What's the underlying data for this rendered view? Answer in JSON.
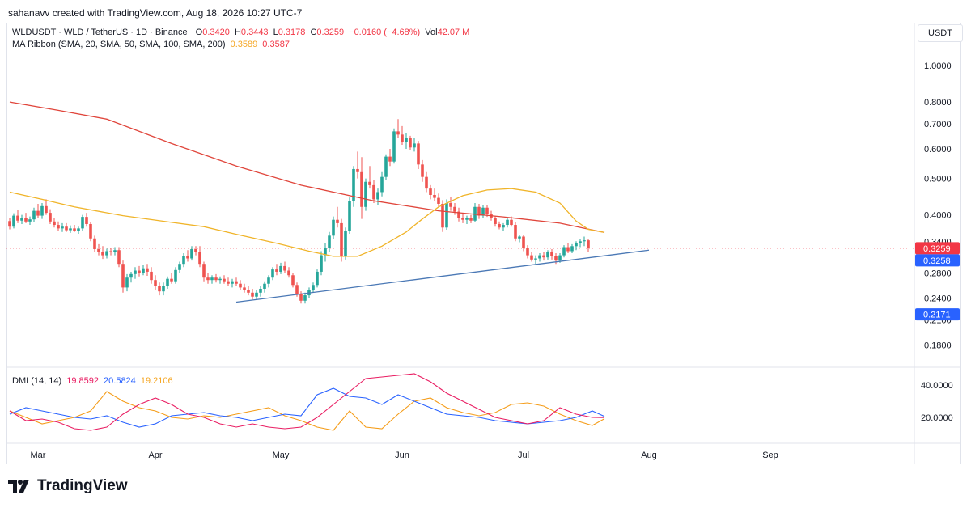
{
  "header": {
    "credit": "sahanavv created with TradingView.com, Aug 18, 2026 10:27 UTC-7"
  },
  "legend": {
    "symbol": "WLDUSDT · WLD / TetherUS · 1D · Binance",
    "o_label": "O",
    "o_value": "0.3420",
    "h_label": "H",
    "h_value": "0.3443",
    "l_label": "L",
    "l_value": "0.3178",
    "c_label": "C",
    "c_value": "0.3259",
    "change": "−0.0160 (−4.68%)",
    "vol_label": "Vol",
    "vol_value": "42.07 M",
    "ma_label": "MA Ribbon (SMA, 20, SMA, 50, SMA, 100, SMA, 200)",
    "ma_value1": "0.3589",
    "ma_value2": "0.3587",
    "dmi_label": "DMI (14, 14)",
    "dmi_plus": "19.8592",
    "dmi_minus": "20.5824",
    "dmi_adx": "19.2106"
  },
  "axis": {
    "currency": "USDT",
    "price_ticks": [
      "1.0000",
      "0.8000",
      "0.7000",
      "0.6000",
      "0.5000",
      "0.4000",
      "0.3400",
      "0.2800",
      "0.2400",
      "0.2100",
      "0.1800"
    ],
    "price_tick_values": [
      1.0,
      0.8,
      0.7,
      0.6,
      0.5,
      0.4,
      0.34,
      0.28,
      0.24,
      0.21,
      0.18
    ],
    "dmi_ticks": [
      "40.0000",
      "20.0000"
    ],
    "dmi_tick_values": [
      40,
      20
    ],
    "months": [
      "Mar",
      "Apr",
      "May",
      "Jun",
      "Jul",
      "Aug",
      "Sep"
    ],
    "price_labels": [
      {
        "text": "0.3259",
        "value": 0.3259,
        "color": "#f23645"
      },
      {
        "text": "0.3258",
        "value": 0.3258,
        "color": "#2962ff"
      },
      {
        "text": "0.2171",
        "value": 0.2171,
        "color": "#2962ff"
      }
    ]
  },
  "brand": {
    "name": "TradingView"
  },
  "colors": {
    "up": "#26a69a",
    "down": "#ef5350",
    "ma_orange": "#f0b429",
    "ma_red": "#e0453b",
    "trendline": "#4a78b5",
    "dmi_plus": "#e91e63",
    "dmi_minus": "#2962ff",
    "dmi_adx": "#f59d1a"
  },
  "chart_data": {
    "type": "candlestick",
    "scale": "log",
    "x_start": "2026-02-23",
    "ylim": [
      0.16,
      1.1
    ],
    "dmi_ylim": [
      5,
      48
    ],
    "candles": [
      [
        0.385,
        0.392,
        0.366,
        0.372
      ],
      [
        0.372,
        0.404,
        0.368,
        0.398
      ],
      [
        0.398,
        0.412,
        0.38,
        0.386
      ],
      [
        0.386,
        0.4,
        0.378,
        0.392
      ],
      [
        0.392,
        0.405,
        0.38,
        0.384
      ],
      [
        0.384,
        0.396,
        0.376,
        0.389
      ],
      [
        0.389,
        0.418,
        0.382,
        0.41
      ],
      [
        0.41,
        0.428,
        0.392,
        0.398
      ],
      [
        0.398,
        0.43,
        0.39,
        0.422
      ],
      [
        0.422,
        0.44,
        0.4,
        0.405
      ],
      [
        0.405,
        0.414,
        0.378,
        0.384
      ],
      [
        0.384,
        0.392,
        0.37,
        0.376
      ],
      [
        0.376,
        0.384,
        0.362,
        0.368
      ],
      [
        0.368,
        0.38,
        0.36,
        0.372
      ],
      [
        0.372,
        0.38,
        0.36,
        0.364
      ],
      [
        0.364,
        0.375,
        0.358,
        0.368
      ],
      [
        0.368,
        0.376,
        0.36,
        0.363
      ],
      [
        0.363,
        0.372,
        0.356,
        0.368
      ],
      [
        0.368,
        0.4,
        0.362,
        0.395
      ],
      [
        0.395,
        0.405,
        0.372,
        0.378
      ],
      [
        0.378,
        0.383,
        0.34,
        0.346
      ],
      [
        0.346,
        0.352,
        0.318,
        0.324
      ],
      [
        0.324,
        0.334,
        0.312,
        0.318
      ],
      [
        0.318,
        0.33,
        0.305,
        0.312
      ],
      [
        0.312,
        0.325,
        0.306,
        0.32
      ],
      [
        0.32,
        0.326,
        0.312,
        0.318
      ],
      [
        0.318,
        0.328,
        0.312,
        0.322
      ],
      [
        0.322,
        0.328,
        0.29,
        0.296
      ],
      [
        0.296,
        0.302,
        0.248,
        0.256
      ],
      [
        0.256,
        0.278,
        0.25,
        0.272
      ],
      [
        0.272,
        0.282,
        0.264,
        0.278
      ],
      [
        0.278,
        0.29,
        0.27,
        0.284
      ],
      [
        0.284,
        0.292,
        0.274,
        0.28
      ],
      [
        0.28,
        0.294,
        0.276,
        0.288
      ],
      [
        0.288,
        0.296,
        0.275,
        0.282
      ],
      [
        0.282,
        0.29,
        0.262,
        0.268
      ],
      [
        0.268,
        0.276,
        0.252,
        0.258
      ],
      [
        0.258,
        0.264,
        0.244,
        0.25
      ],
      [
        0.25,
        0.264,
        0.244,
        0.258
      ],
      [
        0.258,
        0.274,
        0.254,
        0.27
      ],
      [
        0.27,
        0.28,
        0.262,
        0.266
      ],
      [
        0.266,
        0.29,
        0.262,
        0.285
      ],
      [
        0.285,
        0.3,
        0.28,
        0.296
      ],
      [
        0.296,
        0.316,
        0.29,
        0.31
      ],
      [
        0.31,
        0.322,
        0.3,
        0.306
      ],
      [
        0.306,
        0.33,
        0.302,
        0.324
      ],
      [
        0.324,
        0.33,
        0.312,
        0.318
      ],
      [
        0.318,
        0.33,
        0.29,
        0.296
      ],
      [
        0.296,
        0.3,
        0.266,
        0.272
      ],
      [
        0.272,
        0.28,
        0.262,
        0.268
      ],
      [
        0.268,
        0.276,
        0.262,
        0.272
      ],
      [
        0.272,
        0.278,
        0.264,
        0.268
      ],
      [
        0.268,
        0.274,
        0.262,
        0.27
      ],
      [
        0.27,
        0.276,
        0.262,
        0.266
      ],
      [
        0.266,
        0.272,
        0.258,
        0.262
      ],
      [
        0.262,
        0.27,
        0.256,
        0.266
      ],
      [
        0.266,
        0.272,
        0.258,
        0.262
      ],
      [
        0.262,
        0.268,
        0.252,
        0.256
      ],
      [
        0.256,
        0.262,
        0.248,
        0.252
      ],
      [
        0.252,
        0.258,
        0.244,
        0.248
      ],
      [
        0.248,
        0.254,
        0.238,
        0.242
      ],
      [
        0.242,
        0.252,
        0.238,
        0.248
      ],
      [
        0.248,
        0.258,
        0.242,
        0.254
      ],
      [
        0.254,
        0.266,
        0.248,
        0.262
      ],
      [
        0.262,
        0.276,
        0.256,
        0.272
      ],
      [
        0.272,
        0.29,
        0.268,
        0.286
      ],
      [
        0.286,
        0.296,
        0.276,
        0.282
      ],
      [
        0.282,
        0.298,
        0.278,
        0.292
      ],
      [
        0.292,
        0.3,
        0.28,
        0.284
      ],
      [
        0.284,
        0.29,
        0.272,
        0.276
      ],
      [
        0.276,
        0.28,
        0.256,
        0.26
      ],
      [
        0.26,
        0.264,
        0.242,
        0.246
      ],
      [
        0.246,
        0.25,
        0.232,
        0.236
      ],
      [
        0.236,
        0.248,
        0.232,
        0.244
      ],
      [
        0.244,
        0.256,
        0.24,
        0.252
      ],
      [
        0.252,
        0.264,
        0.248,
        0.26
      ],
      [
        0.26,
        0.286,
        0.256,
        0.282
      ],
      [
        0.282,
        0.32,
        0.276,
        0.312
      ],
      [
        0.312,
        0.336,
        0.3,
        0.326
      ],
      [
        0.326,
        0.36,
        0.318,
        0.352
      ],
      [
        0.352,
        0.396,
        0.344,
        0.388
      ],
      [
        0.388,
        0.42,
        0.37,
        0.38
      ],
      [
        0.38,
        0.39,
        0.3,
        0.31
      ],
      [
        0.31,
        0.37,
        0.304,
        0.362
      ],
      [
        0.362,
        0.445,
        0.356,
        0.436
      ],
      [
        0.436,
        0.54,
        0.42,
        0.53
      ],
      [
        0.53,
        0.59,
        0.5,
        0.52
      ],
      [
        0.52,
        0.57,
        0.39,
        0.42
      ],
      [
        0.42,
        0.5,
        0.41,
        0.49
      ],
      [
        0.49,
        0.54,
        0.47,
        0.48
      ],
      [
        0.48,
        0.495,
        0.43,
        0.44
      ],
      [
        0.44,
        0.47,
        0.425,
        0.46
      ],
      [
        0.46,
        0.52,
        0.448,
        0.505
      ],
      [
        0.505,
        0.58,
        0.495,
        0.572
      ],
      [
        0.572,
        0.6,
        0.54,
        0.555
      ],
      [
        0.555,
        0.68,
        0.548,
        0.668
      ],
      [
        0.668,
        0.72,
        0.64,
        0.655
      ],
      [
        0.655,
        0.69,
        0.615,
        0.625
      ],
      [
        0.625,
        0.66,
        0.6,
        0.64
      ],
      [
        0.64,
        0.65,
        0.595,
        0.605
      ],
      [
        0.605,
        0.64,
        0.59,
        0.62
      ],
      [
        0.62,
        0.63,
        0.53,
        0.545
      ],
      [
        0.545,
        0.56,
        0.49,
        0.505
      ],
      [
        0.505,
        0.52,
        0.46,
        0.47
      ],
      [
        0.47,
        0.48,
        0.44,
        0.452
      ],
      [
        0.452,
        0.47,
        0.436,
        0.444
      ],
      [
        0.444,
        0.456,
        0.42,
        0.428
      ],
      [
        0.428,
        0.438,
        0.36,
        0.37
      ],
      [
        0.37,
        0.44,
        0.365,
        0.43
      ],
      [
        0.43,
        0.446,
        0.41,
        0.42
      ],
      [
        0.42,
        0.43,
        0.4,
        0.408
      ],
      [
        0.408,
        0.418,
        0.384,
        0.392
      ],
      [
        0.392,
        0.402,
        0.38,
        0.388
      ],
      [
        0.388,
        0.398,
        0.378,
        0.392
      ],
      [
        0.392,
        0.4,
        0.38,
        0.386
      ],
      [
        0.386,
        0.43,
        0.382,
        0.42
      ],
      [
        0.42,
        0.428,
        0.39,
        0.398
      ],
      [
        0.398,
        0.425,
        0.392,
        0.418
      ],
      [
        0.418,
        0.424,
        0.395,
        0.402
      ],
      [
        0.402,
        0.41,
        0.386,
        0.392
      ],
      [
        0.392,
        0.398,
        0.372,
        0.378
      ],
      [
        0.378,
        0.384,
        0.366,
        0.37
      ],
      [
        0.37,
        0.38,
        0.362,
        0.376
      ],
      [
        0.376,
        0.392,
        0.37,
        0.388
      ],
      [
        0.388,
        0.396,
        0.372,
        0.376
      ],
      [
        0.376,
        0.382,
        0.34,
        0.346
      ],
      [
        0.346,
        0.354,
        0.338,
        0.35
      ],
      [
        0.35,
        0.354,
        0.32,
        0.326
      ],
      [
        0.326,
        0.332,
        0.306,
        0.312
      ],
      [
        0.312,
        0.318,
        0.3,
        0.304
      ],
      [
        0.304,
        0.312,
        0.296,
        0.306
      ],
      [
        0.306,
        0.316,
        0.3,
        0.312
      ],
      [
        0.312,
        0.318,
        0.302,
        0.308
      ],
      [
        0.308,
        0.322,
        0.304,
        0.318
      ],
      [
        0.318,
        0.324,
        0.304,
        0.31
      ],
      [
        0.31,
        0.316,
        0.296,
        0.302
      ],
      [
        0.302,
        0.316,
        0.298,
        0.312
      ],
      [
        0.312,
        0.332,
        0.308,
        0.328
      ],
      [
        0.328,
        0.336,
        0.316,
        0.32
      ],
      [
        0.32,
        0.334,
        0.316,
        0.33
      ],
      [
        0.33,
        0.34,
        0.322,
        0.336
      ],
      [
        0.336,
        0.344,
        0.328,
        0.34
      ],
      [
        0.34,
        0.35,
        0.33,
        0.342
      ],
      [
        0.342,
        0.344,
        0.318,
        0.326
      ]
    ],
    "ma_orange": [
      [
        0,
        0.46
      ],
      [
        8,
        0.44
      ],
      [
        16,
        0.42
      ],
      [
        28,
        0.398
      ],
      [
        40,
        0.382
      ],
      [
        48,
        0.372
      ],
      [
        56,
        0.355
      ],
      [
        66,
        0.336
      ],
      [
        74,
        0.32
      ],
      [
        80,
        0.31
      ],
      [
        86,
        0.31
      ],
      [
        92,
        0.33
      ],
      [
        98,
        0.36
      ],
      [
        102,
        0.39
      ],
      [
        106,
        0.42
      ],
      [
        112,
        0.45
      ],
      [
        118,
        0.466
      ],
      [
        124,
        0.47
      ],
      [
        130,
        0.46
      ],
      [
        136,
        0.43
      ],
      [
        140,
        0.385
      ],
      [
        143,
        0.366
      ],
      [
        147,
        0.359
      ]
    ],
    "ma_red": [
      [
        0,
        0.8
      ],
      [
        12,
        0.76
      ],
      [
        24,
        0.72
      ],
      [
        40,
        0.62
      ],
      [
        56,
        0.54
      ],
      [
        72,
        0.48
      ],
      [
        90,
        0.436
      ],
      [
        106,
        0.41
      ],
      [
        122,
        0.395
      ],
      [
        136,
        0.38
      ],
      [
        147,
        0.359
      ]
    ],
    "trendline": [
      [
        56,
        0.234
      ],
      [
        158,
        0.322
      ]
    ],
    "dmi_plus": [
      [
        0,
        24
      ],
      [
        4,
        18
      ],
      [
        8,
        19
      ],
      [
        12,
        17
      ],
      [
        16,
        13
      ],
      [
        20,
        12
      ],
      [
        24,
        14
      ],
      [
        28,
        22
      ],
      [
        32,
        28
      ],
      [
        36,
        32
      ],
      [
        40,
        28
      ],
      [
        44,
        22
      ],
      [
        48,
        20
      ],
      [
        52,
        16
      ],
      [
        56,
        14
      ],
      [
        60,
        16
      ],
      [
        64,
        14
      ],
      [
        68,
        13
      ],
      [
        72,
        14
      ],
      [
        76,
        20
      ],
      [
        80,
        28
      ],
      [
        84,
        36
      ],
      [
        88,
        44
      ],
      [
        92,
        45
      ],
      [
        96,
        46
      ],
      [
        100,
        47
      ],
      [
        104,
        42
      ],
      [
        108,
        35
      ],
      [
        112,
        30
      ],
      [
        116,
        25
      ],
      [
        120,
        20
      ],
      [
        124,
        18
      ],
      [
        128,
        16
      ],
      [
        132,
        18
      ],
      [
        136,
        26
      ],
      [
        140,
        22
      ],
      [
        144,
        20
      ],
      [
        147,
        19.9
      ]
    ],
    "dmi_minus": [
      [
        0,
        22
      ],
      [
        4,
        26
      ],
      [
        8,
        24
      ],
      [
        12,
        22
      ],
      [
        16,
        20
      ],
      [
        20,
        19
      ],
      [
        24,
        21
      ],
      [
        28,
        17
      ],
      [
        32,
        14
      ],
      [
        36,
        16
      ],
      [
        40,
        21
      ],
      [
        44,
        22
      ],
      [
        48,
        23
      ],
      [
        52,
        21
      ],
      [
        56,
        20
      ],
      [
        60,
        18
      ],
      [
        64,
        20
      ],
      [
        68,
        22
      ],
      [
        72,
        21
      ],
      [
        76,
        34
      ],
      [
        80,
        38
      ],
      [
        84,
        33
      ],
      [
        88,
        32
      ],
      [
        92,
        28
      ],
      [
        96,
        34
      ],
      [
        100,
        30
      ],
      [
        104,
        26
      ],
      [
        108,
        22
      ],
      [
        112,
        21
      ],
      [
        116,
        20
      ],
      [
        120,
        18
      ],
      [
        124,
        17
      ],
      [
        128,
        16
      ],
      [
        132,
        17
      ],
      [
        136,
        18
      ],
      [
        140,
        20
      ],
      [
        144,
        24
      ],
      [
        147,
        20.6
      ]
    ],
    "dmi_adx": [
      [
        0,
        24
      ],
      [
        4,
        20
      ],
      [
        8,
        16
      ],
      [
        12,
        18
      ],
      [
        16,
        20
      ],
      [
        20,
        24
      ],
      [
        24,
        36
      ],
      [
        28,
        30
      ],
      [
        32,
        26
      ],
      [
        36,
        24
      ],
      [
        40,
        20
      ],
      [
        44,
        19
      ],
      [
        48,
        21
      ],
      [
        52,
        20
      ],
      [
        56,
        22
      ],
      [
        60,
        24
      ],
      [
        64,
        26
      ],
      [
        68,
        21
      ],
      [
        72,
        18
      ],
      [
        76,
        14
      ],
      [
        80,
        12
      ],
      [
        84,
        24
      ],
      [
        88,
        14
      ],
      [
        92,
        13
      ],
      [
        96,
        22
      ],
      [
        100,
        30
      ],
      [
        104,
        32
      ],
      [
        108,
        26
      ],
      [
        112,
        23
      ],
      [
        116,
        21
      ],
      [
        120,
        23
      ],
      [
        124,
        28
      ],
      [
        128,
        29
      ],
      [
        132,
        27
      ],
      [
        136,
        22
      ],
      [
        140,
        18
      ],
      [
        144,
        15
      ],
      [
        147,
        19.2
      ]
    ],
    "price_line_value": 0.3259,
    "month_positions": [
      7,
      36,
      67,
      97,
      127,
      158,
      188
    ]
  }
}
